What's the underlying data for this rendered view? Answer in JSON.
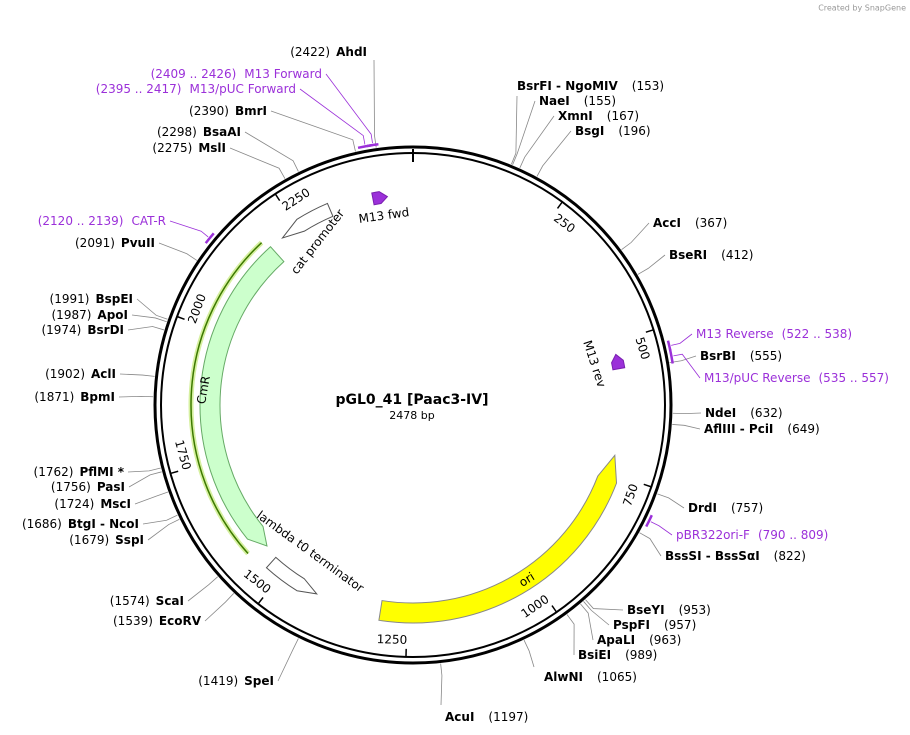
{
  "watermark": "Created by SnapGene",
  "title": "pGL0_41 [Paac3-IV]",
  "size": "2478 bp",
  "ticks": [
    250,
    500,
    750,
    1000,
    1250,
    1500,
    1750,
    2000,
    2250
  ],
  "enzymes": [
    {
      "name": "AhdI",
      "site": "(2422)"
    },
    {
      "name": "BmrI",
      "site": "(2390)"
    },
    {
      "name": "BsaAI",
      "site": "(2298)"
    },
    {
      "name": "MslI",
      "site": "(2275)"
    },
    {
      "name": "PvuII",
      "site": "(2091)"
    },
    {
      "name": "BspEI",
      "site": "(1991)"
    },
    {
      "name": "ApoI",
      "site": "(1987)"
    },
    {
      "name": "BsrDI",
      "site": "(1974)"
    },
    {
      "name": "AclI",
      "site": "(1902)"
    },
    {
      "name": "BpmI",
      "site": "(1871)"
    },
    {
      "name": "PflMI *",
      "site": "(1762)"
    },
    {
      "name": "PasI",
      "site": "(1756)"
    },
    {
      "name": "MscI",
      "site": "(1724)"
    },
    {
      "name": "BtgI - NcoI",
      "site": "(1686)"
    },
    {
      "name": "SspI",
      "site": "(1679)"
    },
    {
      "name": "ScaI",
      "site": "(1574)"
    },
    {
      "name": "EcoRV",
      "site": "(1539)"
    },
    {
      "name": "SpeI",
      "site": "(1419)"
    },
    {
      "name": "BsrFI - NgoMIV",
      "site": "(153)"
    },
    {
      "name": "NaeI",
      "site": "(155)"
    },
    {
      "name": "XmnI",
      "site": "(167)"
    },
    {
      "name": "BsgI",
      "site": "(196)"
    },
    {
      "name": "AccI",
      "site": "(367)"
    },
    {
      "name": "BseRI",
      "site": "(412)"
    },
    {
      "name": "BsrBI",
      "site": "(555)"
    },
    {
      "name": "NdeI",
      "site": "(632)"
    },
    {
      "name": "AflIII - PciI",
      "site": "(649)"
    },
    {
      "name": "DrdI",
      "site": "(757)"
    },
    {
      "name": "BssSI - BssSαI",
      "site": "(822)"
    },
    {
      "name": "BseYI",
      "site": "(953)"
    },
    {
      "name": "PspFI",
      "site": "(957)"
    },
    {
      "name": "ApaLI",
      "site": "(963)"
    },
    {
      "name": "BsiEI",
      "site": "(989)"
    },
    {
      "name": "AlwNI",
      "site": "(1065)"
    },
    {
      "name": "AcuI",
      "site": "(1197)"
    }
  ],
  "primers": [
    {
      "name": "M13 Forward",
      "range": "(2409 .. 2426)"
    },
    {
      "name": "M13/pUC Forward",
      "range": "(2395 .. 2417)"
    },
    {
      "name": "CAT-R",
      "range": "(2120 .. 2139)"
    },
    {
      "name": "M13 Reverse",
      "range": "(522 .. 538)"
    },
    {
      "name": "M13/pUC Reverse",
      "range": "(535 .. 557)"
    },
    {
      "name": "pBR322ori-F",
      "range": "(790 .. 809)"
    }
  ],
  "features": [
    {
      "label": "cat promoter"
    },
    {
      "label": "CmR"
    },
    {
      "label": "lambda t0 terminator"
    },
    {
      "label": "ori"
    },
    {
      "label": "M13 fwd"
    },
    {
      "label": "M13 rev"
    }
  ]
}
